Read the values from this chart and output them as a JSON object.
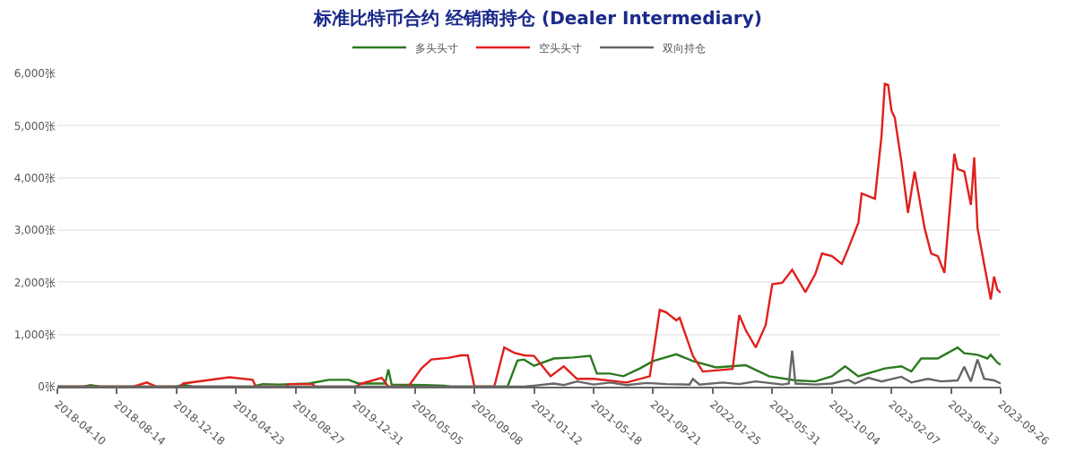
{
  "chart_data": {
    "type": "line",
    "title": "标准比特币合约 经销商持仓 (Dealer Intermediary)",
    "xlim": [
      "2018-04-10",
      "2023-09-26"
    ],
    "xticks": [
      "2018-04-10",
      "2018-08-14",
      "2018-12-18",
      "2019-04-23",
      "2019-08-27",
      "2019-12-31",
      "2020-05-05",
      "2020-09-08",
      "2021-01-12",
      "2021-05-18",
      "2021-09-21",
      "2022-01-25",
      "2022-05-31",
      "2022-10-04",
      "2023-02-07",
      "2023-06-13",
      "2023-09-26"
    ],
    "ylim": [
      0,
      6000
    ],
    "yticks": [
      {
        "value": 0,
        "label": "0张"
      },
      {
        "value": 1000,
        "label": "1,000张"
      },
      {
        "value": 2000,
        "label": "2,000张"
      },
      {
        "value": 3000,
        "label": "3,000张"
      },
      {
        "value": 4000,
        "label": "4,000张"
      },
      {
        "value": 5000,
        "label": "5,000张"
      },
      {
        "value": 6000,
        "label": "6,000张"
      }
    ],
    "grid": "y",
    "legend": "top",
    "marker": "none",
    "line_style": "solid",
    "series": [
      {
        "name": "多头头寸",
        "color": "#2a7a1e",
        "x": [
          "2018-04-10",
          "2018-06-05",
          "2018-06-19",
          "2018-07-10",
          "2018-12-18",
          "2019-01-01",
          "2019-01-22",
          "2019-05-28",
          "2019-06-18",
          "2019-07-23",
          "2019-09-24",
          "2019-11-05",
          "2019-12-17",
          "2020-01-07",
          "2020-03-03",
          "2020-03-10",
          "2020-03-17",
          "2020-05-26",
          "2020-07-07",
          "2020-07-21",
          "2020-11-17",
          "2020-12-08",
          "2020-12-22",
          "2021-01-12",
          "2021-02-23",
          "2021-04-06",
          "2021-05-11",
          "2021-05-25",
          "2021-06-22",
          "2021-07-20",
          "2021-08-24",
          "2021-09-21",
          "2021-11-09",
          "2021-12-14",
          "2022-02-01",
          "2022-04-05",
          "2022-05-24",
          "2022-07-19",
          "2022-08-30",
          "2022-10-04",
          "2022-11-01",
          "2022-11-29",
          "2023-01-24",
          "2023-02-28",
          "2023-03-21",
          "2023-04-11",
          "2023-05-16",
          "2023-05-30",
          "2023-06-27",
          "2023-07-11",
          "2023-08-08",
          "2023-08-29",
          "2023-09-05",
          "2023-09-19",
          "2023-09-26"
        ],
        "values": [
          0,
          0,
          30,
          0,
          0,
          40,
          0,
          0,
          50,
          40,
          60,
          130,
          130,
          60,
          60,
          330,
          40,
          30,
          20,
          0,
          0,
          500,
          520,
          400,
          540,
          560,
          590,
          250,
          250,
          200,
          350,
          490,
          620,
          490,
          370,
          410,
          200,
          120,
          100,
          200,
          390,
          200,
          350,
          390,
          290,
          540,
          540,
          610,
          750,
          640,
          610,
          540,
          610,
          460,
          420
        ]
      },
      {
        "name": "空头头寸",
        "color": "#e0201c",
        "x": [
          "2018-04-10",
          "2018-09-18",
          "2018-10-16",
          "2018-11-06",
          "2018-12-25",
          "2019-01-01",
          "2019-04-09",
          "2019-05-28",
          "2019-06-04",
          "2019-08-06",
          "2019-08-13",
          "2019-10-01",
          "2019-10-08",
          "2019-12-31",
          "2020-01-14",
          "2020-02-25",
          "2020-03-10",
          "2020-04-21",
          "2020-05-19",
          "2020-06-09",
          "2020-07-14",
          "2020-08-11",
          "2020-08-25",
          "2020-09-08",
          "2020-10-20",
          "2020-11-10",
          "2020-12-01",
          "2020-12-22",
          "2021-01-12",
          "2021-02-16",
          "2021-03-16",
          "2021-04-13",
          "2021-05-18",
          "2021-07-27",
          "2021-09-14",
          "2021-10-05",
          "2021-10-19",
          "2021-11-09",
          "2021-11-16",
          "2021-12-14",
          "2022-01-04",
          "2022-02-01",
          "2022-03-08",
          "2022-03-22",
          "2022-04-05",
          "2022-04-26",
          "2022-05-17",
          "2022-05-31",
          "2022-06-21",
          "2022-07-12",
          "2022-08-09",
          "2022-08-30",
          "2022-09-13",
          "2022-10-04",
          "2022-10-25",
          "2022-11-08",
          "2022-11-29",
          "2022-12-06",
          "2023-01-03",
          "2023-01-17",
          "2023-01-24",
          "2023-01-31",
          "2023-02-07",
          "2023-02-14",
          "2023-02-28",
          "2023-03-14",
          "2023-03-21",
          "2023-03-28",
          "2023-04-18",
          "2023-05-02",
          "2023-05-16",
          "2023-05-30",
          "2023-06-20",
          "2023-06-27",
          "2023-07-11",
          "2023-07-25",
          "2023-08-01",
          "2023-08-08",
          "2023-08-22",
          "2023-09-05",
          "2023-09-12",
          "2023-09-19",
          "2023-09-26"
        ],
        "values": [
          0,
          0,
          80,
          0,
          0,
          60,
          180,
          130,
          0,
          0,
          50,
          50,
          0,
          0,
          60,
          170,
          0,
          0,
          350,
          520,
          550,
          600,
          600,
          0,
          0,
          750,
          650,
          600,
          590,
          200,
          390,
          150,
          150,
          80,
          200,
          1470,
          1420,
          1270,
          1320,
          590,
          290,
          310,
          340,
          1370,
          1080,
          750,
          1180,
          1960,
          1990,
          2240,
          1810,
          2160,
          2550,
          2500,
          2350,
          2650,
          3140,
          3700,
          3600,
          4800,
          5800,
          5780,
          5290,
          5150,
          4310,
          3330,
          3730,
          4120,
          3040,
          2550,
          2500,
          2180,
          4460,
          4170,
          4120,
          3480,
          4390,
          3040,
          2350,
          1670,
          2110,
          1860,
          1800
        ]
      },
      {
        "name": "双向持仓",
        "color": "#666666",
        "x": [
          "2018-04-10",
          "2020-12-22",
          "2021-01-12",
          "2021-02-23",
          "2021-03-16",
          "2021-04-13",
          "2021-05-18",
          "2021-06-22",
          "2021-07-27",
          "2021-09-07",
          "2021-10-19",
          "2021-12-07",
          "2021-12-14",
          "2021-12-28",
          "2022-02-15",
          "2022-03-22",
          "2022-04-26",
          "2022-06-21",
          "2022-07-05",
          "2022-07-12",
          "2022-07-19",
          "2022-08-30",
          "2022-10-04",
          "2022-11-08",
          "2022-11-22",
          "2022-12-20",
          "2023-01-17",
          "2023-02-28",
          "2023-03-21",
          "2023-04-25",
          "2023-05-23",
          "2023-06-27",
          "2023-07-11",
          "2023-07-25",
          "2023-08-08",
          "2023-08-22",
          "2023-09-12",
          "2023-09-26"
        ],
        "values": [
          0,
          0,
          20,
          60,
          30,
          100,
          40,
          80,
          30,
          70,
          50,
          40,
          150,
          40,
          80,
          50,
          100,
          40,
          60,
          690,
          60,
          40,
          60,
          130,
          60,
          170,
          100,
          190,
          80,
          150,
          100,
          120,
          380,
          100,
          520,
          150,
          120,
          60
        ]
      }
    ]
  }
}
